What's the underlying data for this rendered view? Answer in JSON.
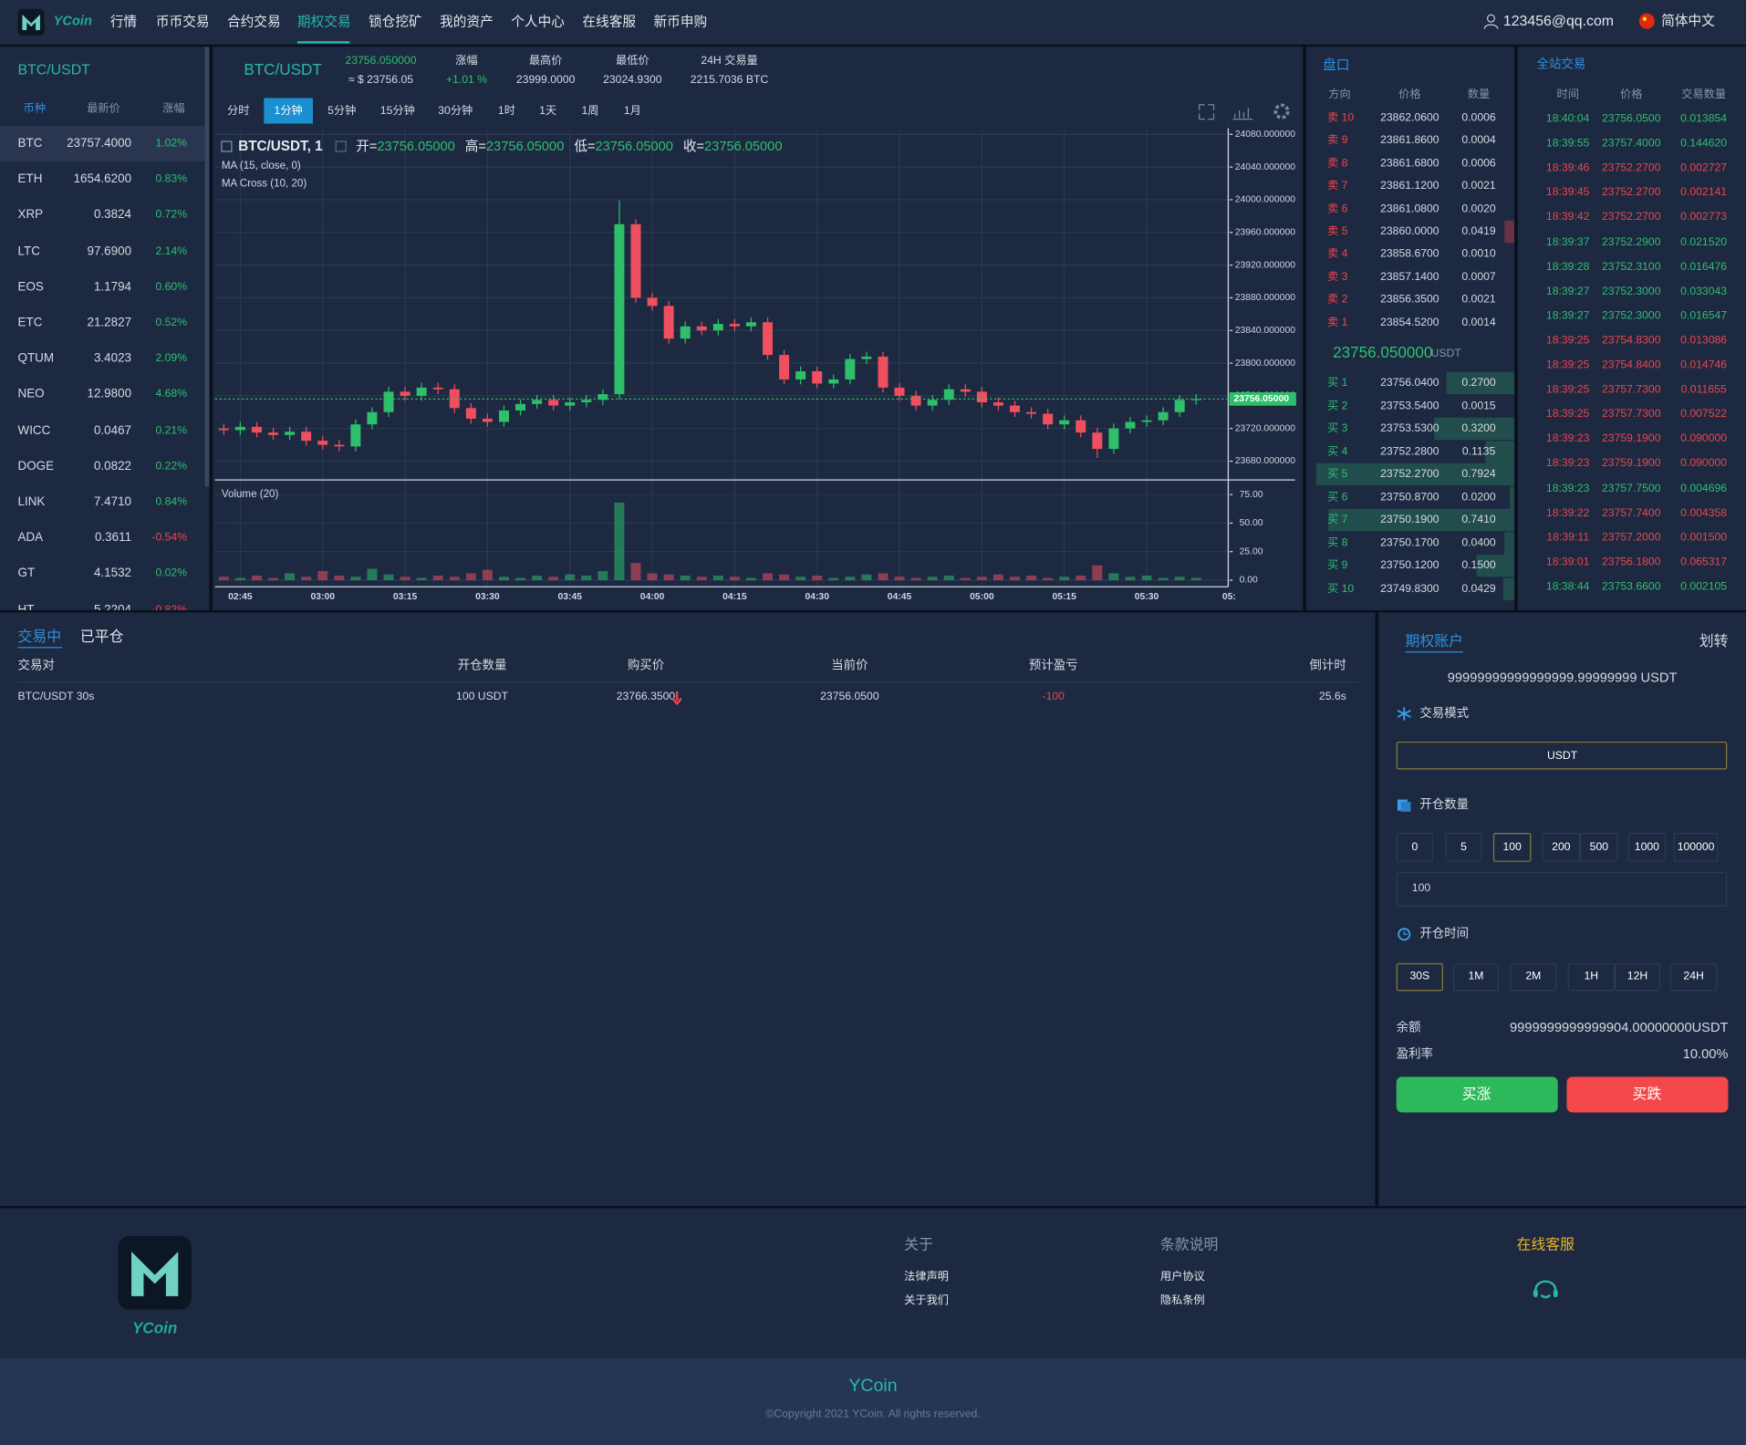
{
  "nav": {
    "logo": "YCoin",
    "menu": [
      "行情",
      "币币交易",
      "合约交易",
      "期权交易",
      "锁仓挖矿",
      "我的资产",
      "个人中心",
      "在线客服",
      "新币申购"
    ],
    "active": 3,
    "user": "123456@qq.com",
    "language": "简体中文"
  },
  "market": {
    "title": "BTC/USDT",
    "headers": [
      "币种",
      "最新价",
      "涨幅"
    ],
    "rows": [
      [
        "BTC",
        "23757.4000",
        "1.02%"
      ],
      [
        "ETH",
        "1654.6200",
        "0.83%"
      ],
      [
        "XRP",
        "0.3824",
        "0.72%"
      ],
      [
        "LTC",
        "97.6900",
        "2.14%"
      ],
      [
        "EOS",
        "1.1794",
        "0.60%"
      ],
      [
        "ETC",
        "21.2827",
        "0.52%"
      ],
      [
        "QTUM",
        "3.4023",
        "2.09%"
      ],
      [
        "NEO",
        "12.9800",
        "4.68%"
      ],
      [
        "WICC",
        "0.0467",
        "0.21%"
      ],
      [
        "DOGE",
        "0.0822",
        "0.22%"
      ],
      [
        "LINK",
        "7.4710",
        "0.84%"
      ],
      [
        "ADA",
        "0.3611",
        "-0.54%"
      ],
      [
        "GT",
        "4.1532",
        "0.02%"
      ],
      [
        "HT",
        "5.2204",
        "-0.82%"
      ]
    ]
  },
  "ticker": {
    "pair": "BTC/USDT",
    "price": "23756.050000",
    "usd": "≈ $ 23756.05",
    "stats": [
      {
        "label": "涨幅",
        "value": "+1.01 %"
      },
      {
        "label": "最高价",
        "value": "23999.0000"
      },
      {
        "label": "最低价",
        "value": "23024.9300"
      },
      {
        "label": "24H 交易量",
        "value": "2215.7036 BTC"
      }
    ]
  },
  "periods": {
    "items": [
      "分时",
      "1分钟",
      "5分钟",
      "15分钟",
      "30分钟",
      "1时",
      "1天",
      "1周",
      "1月"
    ],
    "active": 1
  },
  "chart_data": {
    "type": "candlestick",
    "title": "BTC/USDT, 1",
    "indicators": [
      "MA (15, close, 0)",
      "MA Cross (10, 20)"
    ],
    "ohlc_legend": [
      {
        "label": "开=",
        "value": "23756.05000"
      },
      {
        "label": "高=",
        "value": "23756.05000"
      },
      {
        "label": "低=",
        "value": "23756.05000"
      },
      {
        "label": "收=",
        "value": "23756.05000"
      }
    ],
    "categories": [
      null,
      "02:45",
      null,
      null,
      null,
      null,
      "03:00",
      null,
      null,
      null,
      null,
      "03:15",
      null,
      null,
      null,
      null,
      "03:30",
      null,
      null,
      null,
      null,
      "03:45",
      null,
      null,
      null,
      null,
      "04:00",
      null,
      null,
      null,
      null,
      "04:15",
      null,
      null,
      null,
      null,
      "04:30",
      null,
      null,
      null,
      null,
      "04:45",
      null,
      null,
      null,
      null,
      "05:00",
      null,
      null,
      null,
      null,
      "05:15",
      null,
      null,
      null,
      null,
      "05:30",
      null,
      null,
      null,
      null,
      "05:"
    ],
    "open": [
      23720,
      23718,
      23722,
      23715,
      23712,
      23716,
      23705,
      23700,
      23698,
      23725,
      23740,
      23765,
      23760,
      23770,
      23768,
      23745,
      23732,
      23728,
      23742,
      23750,
      23755,
      23748,
      23752,
      23755,
      23762,
      23970,
      23880,
      23870,
      23830,
      23845,
      23840,
      23848,
      23845,
      23850,
      23810,
      23780,
      23790,
      23775,
      23780,
      23805,
      23808,
      23770,
      23760,
      23748,
      23755,
      23768,
      23765,
      23752,
      23748,
      23740,
      23738,
      23725,
      23730,
      23715,
      23695,
      23720,
      23728,
      23730,
      23740,
      23755,
      null,
      null
    ],
    "high": [
      23726,
      23728,
      23728,
      23721,
      23722,
      23722,
      23711,
      23706,
      23731,
      23746,
      23771,
      23771,
      23776,
      23776,
      23774,
      23751,
      23738,
      23748,
      23756,
      23761,
      23761,
      23758,
      23761,
      23768,
      23999,
      23976,
      23886,
      23876,
      23851,
      23851,
      23854,
      23854,
      23856,
      23856,
      23816,
      23796,
      23796,
      23786,
      23811,
      23814,
      23814,
      23776,
      23766,
      23761,
      23774,
      23774,
      23771,
      23758,
      23754,
      23746,
      23744,
      23736,
      23736,
      23721,
      23726,
      23734,
      23736,
      23746,
      23761,
      23762,
      null,
      null
    ],
    "low": [
      23712,
      23712,
      23709,
      23706,
      23706,
      23699,
      23694,
      23692,
      23692,
      23719,
      23734,
      23754,
      23754,
      23762,
      23739,
      23726,
      23722,
      23722,
      23736,
      23744,
      23742,
      23742,
      23746,
      23749,
      23756,
      23874,
      23864,
      23824,
      23824,
      23834,
      23834,
      23839,
      23839,
      23804,
      23774,
      23774,
      23769,
      23769,
      23774,
      23799,
      23764,
      23754,
      23742,
      23742,
      23749,
      23759,
      23746,
      23742,
      23734,
      23732,
      23719,
      23719,
      23709,
      23684,
      23689,
      23714,
      23722,
      23724,
      23734,
      23749,
      null,
      null
    ],
    "close": [
      23718,
      23722,
      23715,
      23712,
      23716,
      23705,
      23700,
      23698,
      23725,
      23740,
      23765,
      23760,
      23770,
      23768,
      23745,
      23732,
      23728,
      23742,
      23750,
      23755,
      23748,
      23752,
      23755,
      23762,
      23970,
      23880,
      23870,
      23830,
      23845,
      23840,
      23848,
      23845,
      23850,
      23810,
      23780,
      23790,
      23775,
      23780,
      23805,
      23808,
      23770,
      23760,
      23748,
      23755,
      23768,
      23765,
      23752,
      23748,
      23740,
      23738,
      23725,
      23730,
      23715,
      23695,
      23720,
      23728,
      23730,
      23740,
      23755,
      23756.05,
      null,
      null
    ],
    "up_color": "#2fbf6a",
    "down_color": "#ef4f5e",
    "ylim": [
      23657,
      24085
    ],
    "yticks": [
      {
        "value": 23680,
        "label": "23680.000000"
      },
      {
        "value": 23720,
        "label": "23720.000000"
      },
      {
        "value": 23760,
        "label": "23760.000000"
      },
      {
        "value": 23800,
        "label": "23800.000000"
      },
      {
        "value": 23840,
        "label": "23840.000000"
      },
      {
        "value": 23880,
        "label": "23880.000000"
      },
      {
        "value": 23920,
        "label": "23920.000000"
      },
      {
        "value": 23960,
        "label": "23960.000000"
      },
      {
        "value": 24000,
        "label": "24000.000000"
      },
      {
        "value": 24040,
        "label": "24040.000000"
      },
      {
        "value": 24080,
        "label": "24080.000000"
      }
    ],
    "last_price": {
      "value": 23756.05,
      "label": "23756.05000"
    },
    "volume": {
      "title": "Volume (20)",
      "values": [
        3,
        2,
        4,
        2,
        6,
        3,
        8,
        4,
        3,
        10,
        5,
        3,
        2,
        4,
        3,
        6,
        9,
        3,
        2,
        4,
        3,
        5,
        4,
        8,
        68,
        15,
        6,
        5,
        4,
        3,
        4,
        3,
        2,
        6,
        5,
        3,
        4,
        2,
        3,
        5,
        6,
        3,
        2,
        3,
        4,
        2,
        3,
        5,
        3,
        4,
        2,
        3,
        4,
        13,
        6,
        3,
        4,
        2,
        3,
        2,
        null,
        null
      ],
      "ylim": [
        0,
        82
      ],
      "yticks": [
        {
          "value": 0,
          "label": "0.00"
        },
        {
          "value": 25,
          "label": "25.00"
        },
        {
          "value": 50,
          "label": "50.00"
        },
        {
          "value": 75,
          "label": "75.00"
        }
      ]
    },
    "grid": true
  },
  "orderbook": {
    "title": "盘口",
    "headers": [
      "方向",
      "价格",
      "数量"
    ],
    "asks": [
      [
        "卖 10",
        "23862.0600",
        "0.0006"
      ],
      [
        "卖 9",
        "23861.8600",
        "0.0004"
      ],
      [
        "卖 8",
        "23861.6800",
        "0.0006"
      ],
      [
        "卖 7",
        "23861.1200",
        "0.0021"
      ],
      [
        "卖 6",
        "23861.0800",
        "0.0020"
      ],
      [
        "卖 5",
        "23860.0000",
        "0.0419"
      ],
      [
        "卖 4",
        "23858.6700",
        "0.0010"
      ],
      [
        "卖 3",
        "23857.1400",
        "0.0007"
      ],
      [
        "卖 2",
        "23856.3500",
        "0.0021"
      ],
      [
        "卖 1",
        "23854.5200",
        "0.0014"
      ]
    ],
    "last": "23756.050000",
    "unit": "USDT",
    "bids": [
      [
        "买 1",
        "23756.0400",
        "0.2700"
      ],
      [
        "买 2",
        "23753.5400",
        "0.0015"
      ],
      [
        "买 3",
        "23753.5300",
        "0.3200"
      ],
      [
        "买 4",
        "23752.2800",
        "0.1135"
      ],
      [
        "买 5",
        "23752.2700",
        "0.7924"
      ],
      [
        "买 6",
        "23750.8700",
        "0.0200"
      ],
      [
        "买 7",
        "23750.1900",
        "0.7410"
      ],
      [
        "买 8",
        "23750.1700",
        "0.0400"
      ],
      [
        "买 9",
        "23750.1200",
        "0.1500"
      ],
      [
        "买 10",
        "23749.8300",
        "0.0429"
      ]
    ]
  },
  "trades": {
    "title": "全站交易",
    "headers": [
      "时间",
      "价格",
      "交易数量"
    ],
    "rows": [
      {
        "time": "18:40:04",
        "price": "23756.0500",
        "amount": "0.013854",
        "color": "#2fbf71"
      },
      {
        "time": "18:39:55",
        "price": "23757.4000",
        "amount": "0.144620",
        "color": "#2fbf71"
      },
      {
        "time": "18:39:46",
        "price": "23752.2700",
        "amount": "0.002727",
        "color": "#f0444c"
      },
      {
        "time": "18:39:45",
        "price": "23752.2700",
        "amount": "0.002141",
        "color": "#f0444c"
      },
      {
        "time": "18:39:42",
        "price": "23752.2700",
        "amount": "0.002773",
        "color": "#f0444c"
      },
      {
        "time": "18:39:37",
        "price": "23752.2900",
        "amount": "0.021520",
        "color": "#2fbf71"
      },
      {
        "time": "18:39:28",
        "price": "23752.3100",
        "amount": "0.016476",
        "color": "#2fbf71"
      },
      {
        "time": "18:39:27",
        "price": "23752.3000",
        "amount": "0.033043",
        "color": "#2fbf71"
      },
      {
        "time": "18:39:27",
        "price": "23752.3000",
        "amount": "0.016547",
        "color": "#2fbf71"
      },
      {
        "time": "18:39:25",
        "price": "23754.8300",
        "amount": "0.013086",
        "color": "#f0444c"
      },
      {
        "time": "18:39:25",
        "price": "23754.8400",
        "amount": "0.014746",
        "color": "#f0444c"
      },
      {
        "time": "18:39:25",
        "price": "23757.7300",
        "amount": "0.011655",
        "color": "#f0444c"
      },
      {
        "time": "18:39:25",
        "price": "23757.7300",
        "amount": "0.007522",
        "color": "#f0444c"
      },
      {
        "time": "18:39:23",
        "price": "23759.1900",
        "amount": "0.090000",
        "color": "#f0444c"
      },
      {
        "time": "18:39:23",
        "price": "23759.1900",
        "amount": "0.090000",
        "color": "#f0444c"
      },
      {
        "time": "18:39:23",
        "price": "23757.7500",
        "amount": "0.004696",
        "color": "#2fbf71"
      },
      {
        "time": "18:39:22",
        "price": "23757.7400",
        "amount": "0.004358",
        "color": "#f0444c"
      },
      {
        "time": "18:39:11",
        "price": "23757.2000",
        "amount": "0.001500",
        "color": "#f0444c"
      },
      {
        "time": "18:39:01",
        "price": "23756.1800",
        "amount": "0.065317",
        "color": "#f0444c"
      },
      {
        "time": "18:38:44",
        "price": "23753.6600",
        "amount": "0.002105",
        "color": "#2fbf71"
      }
    ]
  },
  "orders": {
    "tabs": [
      "交易中",
      "已平仓"
    ],
    "active": 0,
    "headers": [
      "交易对",
      "开仓数量",
      "购买价",
      "当前价",
      "预计盈亏",
      "倒计时"
    ],
    "rows": [
      [
        "BTC/USDT 30s",
        "100 USDT",
        "23766.3500",
        "23756.0500",
        "-100",
        "25.6s"
      ]
    ]
  },
  "account": {
    "title": "期权账户",
    "transfer": "划转",
    "balance": "99999999999999999.99999999 USDT",
    "mode_label": "交易模式",
    "mode": "USDT",
    "amount_label": "开仓数量",
    "amounts": [
      0,
      5,
      100,
      200,
      500,
      1000,
      100000
    ],
    "amount_active": 2,
    "amount_input": "100",
    "time_label": "开仓时间",
    "times": [
      "30S",
      "1M",
      "2M",
      "1H",
      "12H",
      "24H"
    ],
    "time_active": 0,
    "summary": [
      {
        "label": "余额",
        "value": "9999999999999904.00000000USDT"
      },
      {
        "label": "盈利率",
        "value": "10.00%"
      }
    ],
    "buy_up": "买涨",
    "buy_down": "买跌"
  },
  "footer": {
    "logo": "YCoin",
    "columns": [
      {
        "title": "关于",
        "links": [
          "法律声明",
          "关于我们"
        ]
      },
      {
        "title": "条款说明",
        "links": [
          "用户协议",
          "隐私条例"
        ]
      }
    ],
    "service": "在线客服",
    "brand": "YCoin",
    "copyright": "©Copyright 2021 YCoin. All rights reserved."
  }
}
